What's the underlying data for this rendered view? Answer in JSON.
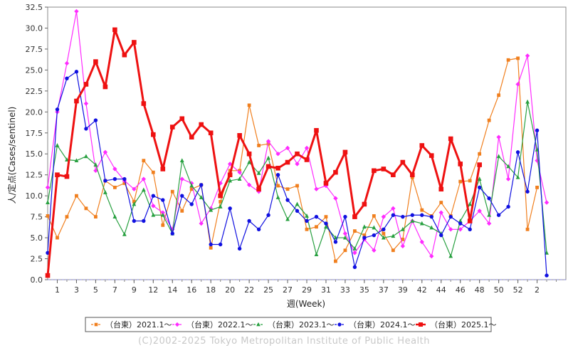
{
  "chart_data": {
    "type": "line",
    "xlabel": "週(Week)",
    "ylabel": "人/定点(Cases/sentinel)",
    "ylim": [
      0,
      32.5
    ],
    "yticks": [
      "0.0",
      "2.5",
      "5.0",
      "7.5",
      "10.0",
      "12.5",
      "15.0",
      "17.5",
      "20.0",
      "22.5",
      "25.0",
      "27.5",
      "30.0",
      "32.5"
    ],
    "xlim": [
      0,
      54
    ],
    "xticks": [
      {
        "v": 1,
        "t": "1"
      },
      {
        "v": 3,
        "t": "3"
      },
      {
        "v": 5,
        "t": "5"
      },
      {
        "v": 7,
        "t": "7"
      },
      {
        "v": 9,
        "t": "9"
      },
      {
        "v": 11,
        "t": "12"
      },
      {
        "v": 13,
        "t": "14"
      },
      {
        "v": 15,
        "t": "16"
      },
      {
        "v": 17,
        "t": "18"
      },
      {
        "v": 19,
        "t": "20"
      },
      {
        "v": 21,
        "t": "22"
      },
      {
        "v": 23,
        "t": "25"
      },
      {
        "v": 25,
        "t": "27"
      },
      {
        "v": 27,
        "t": "29"
      },
      {
        "v": 29,
        "t": "31"
      },
      {
        "v": 31,
        "t": "33"
      },
      {
        "v": 33,
        "t": "35"
      },
      {
        "v": 35,
        "t": "37"
      },
      {
        "v": 37,
        "t": "39"
      },
      {
        "v": 39,
        "t": "42"
      },
      {
        "v": 41,
        "t": "44"
      },
      {
        "v": 43,
        "t": "46"
      },
      {
        "v": 45,
        "t": "48"
      },
      {
        "v": 47,
        "t": "50"
      },
      {
        "v": 49,
        "t": "52"
      },
      {
        "v": 51,
        "t": "2"
      }
    ],
    "series": [
      {
        "name": "（台東）2021.1～",
        "color": "#f07f1e",
        "marker": "square",
        "lineWidth": 1.2,
        "values": [
          7.6,
          5.0,
          7.5,
          10.0,
          8.5,
          7.5,
          11.8,
          11.0,
          11.5,
          9.3,
          14.2,
          12.8,
          6.5,
          10.5,
          8.2,
          10.8,
          11.3,
          3.8,
          9.3,
          13.0,
          13.0,
          20.8,
          16.0,
          16.2,
          11.2,
          10.8,
          11.2,
          6.0,
          6.3,
          7.5,
          2.2,
          3.5,
          5.8,
          5.3,
          7.6,
          5.5,
          3.5,
          4.8,
          12.2,
          8.3,
          7.6,
          9.2,
          7.6,
          11.7,
          11.8,
          15.0,
          19.0,
          22.0,
          26.2,
          26.4,
          6.0,
          11.0
        ]
      },
      {
        "name": "（台東）2022.1～",
        "color": "#ff2bff",
        "marker": "diamond",
        "lineWidth": 1.2,
        "values": [
          11.0,
          20.0,
          25.8,
          32.0,
          21.0,
          13.0,
          15.2,
          13.2,
          11.8,
          10.8,
          12.0,
          8.8,
          8.0,
          6.0,
          12.0,
          11.5,
          6.7,
          8.5,
          11.5,
          13.8,
          12.8,
          11.3,
          10.5,
          16.5,
          15.0,
          15.7,
          13.8,
          15.7,
          10.8,
          11.2,
          9.7,
          5.5,
          3.2,
          4.8,
          3.5,
          7.5,
          8.5,
          4.0,
          7.0,
          4.5,
          2.8,
          8.0,
          6.0,
          6.0,
          7.0,
          8.2,
          6.7,
          17.0,
          12.0,
          23.3,
          26.7,
          14.2,
          9.2
        ]
      },
      {
        "name": "（台東）2023.1～",
        "color": "#28a040",
        "marker": "triangle",
        "lineWidth": 1.2,
        "values": [
          9.2,
          16.0,
          14.3,
          14.2,
          14.7,
          13.7,
          10.4,
          7.5,
          5.4,
          9.0,
          10.7,
          7.7,
          7.7,
          5.5,
          14.2,
          11.2,
          9.8,
          8.3,
          8.7,
          11.8,
          12.0,
          14.0,
          12.7,
          14.5,
          9.8,
          7.2,
          9.0,
          7.6,
          3.0,
          6.3,
          5.0,
          5.0,
          3.7,
          6.3,
          6.2,
          5.0,
          5.2,
          6.0,
          7.0,
          6.7,
          6.2,
          5.5,
          2.8,
          7.0,
          9.0,
          12.0,
          7.7,
          14.7,
          13.5,
          12.2,
          21.2,
          15.5,
          3.2
        ]
      },
      {
        "name": "（台東）2024.1～",
        "color": "#1010e0",
        "marker": "circle",
        "lineWidth": 1.2,
        "values": [
          3.2,
          20.3,
          24.0,
          24.8,
          18.0,
          19.0,
          11.8,
          12.0,
          12.0,
          7.0,
          7.0,
          10.0,
          9.5,
          5.5,
          10.0,
          9.0,
          11.3,
          4.2,
          4.2,
          8.5,
          3.7,
          7.0,
          6.0,
          7.7,
          12.5,
          9.5,
          8.2,
          7.0,
          7.5,
          6.7,
          4.5,
          7.5,
          1.5,
          5.0,
          5.3,
          6.0,
          7.7,
          7.5,
          7.7,
          7.7,
          7.5,
          5.3,
          7.5,
          6.7,
          6.0,
          11.0,
          9.7,
          7.7,
          8.7,
          15.2,
          10.5,
          17.8,
          0.5
        ]
      },
      {
        "name": "（台東）2025.1～",
        "color": "#ee1111",
        "marker": "square",
        "lineWidth": 3.0,
        "values": [
          0.5,
          12.5,
          12.3,
          21.3,
          23.3,
          26.0,
          23.0,
          29.8,
          26.8,
          28.3,
          21.0,
          17.3,
          13.2,
          18.2,
          19.2,
          17.0,
          18.5,
          17.5,
          10.0,
          12.5,
          17.2,
          15.0,
          10.8,
          13.5,
          13.3,
          14.0,
          15.0,
          14.3,
          17.8,
          11.5,
          12.8,
          15.2,
          7.5,
          9.0,
          13.0,
          13.2,
          12.5,
          14.0,
          12.5,
          16.0,
          14.8,
          10.8,
          16.8,
          13.8,
          7.0,
          13.7
        ]
      }
    ],
    "legend_position": "bottom",
    "grid": false
  },
  "footer": "(C)2002-2025 Tokyo Metropolitan Institute of Public Health"
}
